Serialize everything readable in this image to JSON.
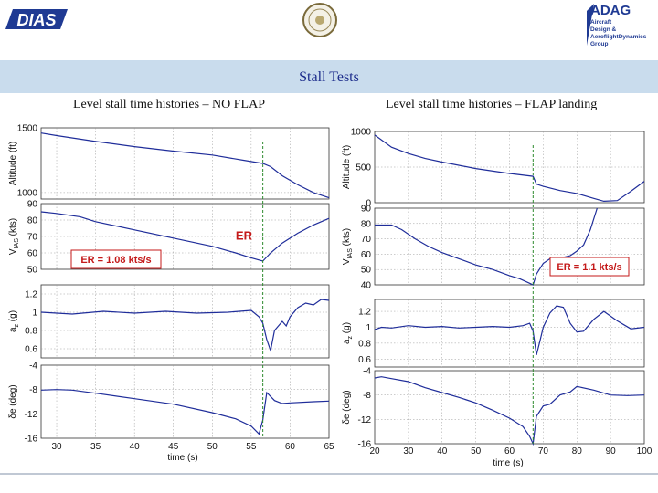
{
  "header": {
    "logo_left": "DIAS",
    "logo_right_title": "ADAG",
    "logo_right_lines": [
      "Aircraft",
      "Design &",
      "AeroflightDynamics",
      "Group"
    ]
  },
  "page": {
    "title": "Stall Tests",
    "subtitle_left": "Level stall time histories – NO FLAP",
    "subtitle_right": "Level stall time histories – FLAP landing"
  },
  "colors": {
    "trace": "#1f2d9a",
    "marker": "#2e8b2e",
    "annotation": "#c41a1a",
    "band": "#c9dced"
  },
  "chart_data": [
    {
      "type": "line",
      "subtitle": "Level stall time histories – NO FLAP",
      "xlabel": "time (s)",
      "xlim": [
        28,
        65
      ],
      "xticks": [
        30,
        35,
        40,
        45,
        50,
        55,
        60,
        65
      ],
      "marker_x": 56.5,
      "annotation_box": {
        "text": "ER = 1.08 kts/s",
        "panel": 1
      },
      "annotation_label": {
        "text": "ER",
        "panel": 1,
        "x": 56.3,
        "y": 68
      },
      "panels": [
        {
          "ylabel": "Altitude (ft)",
          "ylim": [
            950,
            1500
          ],
          "yticks": [
            1000,
            1500
          ],
          "x": [
            28,
            30,
            35,
            40,
            45,
            50,
            54,
            56.5,
            57.5,
            59,
            61,
            63,
            65
          ],
          "y": [
            1460,
            1440,
            1395,
            1355,
            1320,
            1290,
            1250,
            1225,
            1200,
            1130,
            1060,
            1000,
            960
          ]
        },
        {
          "ylabel": "V_IAS (kts)",
          "ylim": [
            50,
            90
          ],
          "yticks": [
            50,
            60,
            70,
            80,
            90
          ],
          "x": [
            28,
            30,
            33,
            35,
            40,
            45,
            50,
            53,
            55,
            56.5,
            57.5,
            59,
            61,
            63,
            65
          ],
          "y": [
            85,
            84,
            82,
            79,
            74,
            69,
            64,
            60,
            57,
            55,
            60,
            66,
            72,
            77,
            81
          ]
        },
        {
          "ylabel": "a_z (g)",
          "ylim": [
            0.5,
            1.3
          ],
          "yticks": [
            0.6,
            0.8,
            1,
            1.2
          ],
          "x": [
            28,
            32,
            36,
            40,
            44,
            48,
            52,
            55,
            56,
            56.5,
            57,
            57.5,
            58,
            59,
            59.5,
            60,
            61,
            62,
            63,
            64,
            65
          ],
          "y": [
            1,
            0.98,
            1.01,
            0.99,
            1.01,
            0.99,
            1,
            1.02,
            0.95,
            0.88,
            0.7,
            0.58,
            0.8,
            0.9,
            0.85,
            0.95,
            1.05,
            1.1,
            1.08,
            1.14,
            1.13
          ]
        },
        {
          "ylabel": "δe (deg)",
          "ylim": [
            -16,
            -4
          ],
          "yticks": [
            -16,
            -12,
            -8,
            -4
          ],
          "x": [
            28,
            30,
            32,
            35,
            40,
            45,
            50,
            53,
            55,
            56,
            56.5,
            57,
            58,
            59,
            60,
            63,
            65
          ],
          "y": [
            -8.1,
            -8,
            -8.1,
            -8.6,
            -9.5,
            -10.4,
            -11.8,
            -12.8,
            -14,
            -15.3,
            -13,
            -8.5,
            -9.8,
            -10.3,
            -10.2,
            -10,
            -9.9
          ]
        }
      ]
    },
    {
      "type": "line",
      "subtitle": "Level stall time histories – FLAP landing",
      "xlabel": "time (s)",
      "xlim": [
        20,
        100
      ],
      "xticks": [
        20,
        30,
        40,
        50,
        60,
        70,
        80,
        90,
        100
      ],
      "marker_x": 67,
      "annotation_box": {
        "text": "ER = 1.1 kts/s",
        "panel": 1
      },
      "panels": [
        {
          "ylabel": "Altitude (ft)",
          "ylim": [
            0,
            1000
          ],
          "yticks": [
            0,
            500,
            1000
          ],
          "x": [
            20,
            25,
            30,
            35,
            40,
            50,
            60,
            67,
            68,
            70,
            75,
            80,
            85,
            88,
            92,
            96,
            100
          ],
          "y": [
            950,
            780,
            690,
            620,
            570,
            480,
            410,
            370,
            260,
            230,
            170,
            130,
            60,
            20,
            30,
            160,
            300
          ]
        },
        {
          "ylabel": "V_IAS (kts)",
          "ylim": [
            40,
            90
          ],
          "yticks": [
            40,
            50,
            60,
            70,
            80,
            90
          ],
          "x": [
            20,
            25,
            28,
            32,
            36,
            40,
            45,
            50,
            55,
            60,
            63,
            66,
            67,
            68,
            70,
            72,
            74,
            76,
            78,
            80,
            82,
            84,
            86
          ],
          "y": [
            79,
            79,
            76,
            70,
            65,
            61,
            57,
            53,
            50,
            46,
            44,
            41,
            40,
            47,
            54,
            57,
            58,
            58,
            59,
            62,
            66,
            76,
            90
          ]
        },
        {
          "ylabel": "a_z (g)",
          "ylim": [
            0.5,
            1.35
          ],
          "yticks": [
            0.6,
            0.8,
            1,
            1.2
          ],
          "x": [
            20,
            22,
            25,
            30,
            35,
            40,
            45,
            50,
            55,
            60,
            64,
            66,
            67,
            68,
            69,
            70,
            72,
            74,
            76,
            78,
            80,
            82,
            85,
            88,
            92,
            96,
            100
          ],
          "y": [
            0.97,
            1,
            0.99,
            1.02,
            1,
            1.01,
            0.99,
            1,
            1.01,
            1,
            1.02,
            1.05,
            0.95,
            0.65,
            0.82,
            1,
            1.18,
            1.27,
            1.25,
            1.05,
            0.94,
            0.95,
            1.1,
            1.2,
            1.08,
            0.98,
            1
          ]
        },
        {
          "ylabel": "δe (deg)",
          "ylim": [
            -16,
            -4
          ],
          "yticks": [
            -16,
            -12,
            -8,
            -4
          ],
          "x": [
            20,
            22,
            25,
            30,
            35,
            40,
            45,
            50,
            55,
            60,
            64,
            66,
            67,
            68,
            70,
            72,
            75,
            78,
            80,
            85,
            90,
            95,
            100
          ],
          "y": [
            -5.2,
            -5,
            -5.3,
            -5.8,
            -6.8,
            -7.6,
            -8.4,
            -9.3,
            -10.5,
            -11.8,
            -13.2,
            -14.8,
            -16,
            -11.5,
            -9.8,
            -9.5,
            -8,
            -7.5,
            -6.6,
            -7.2,
            -8,
            -8.1,
            -8
          ]
        }
      ]
    }
  ]
}
